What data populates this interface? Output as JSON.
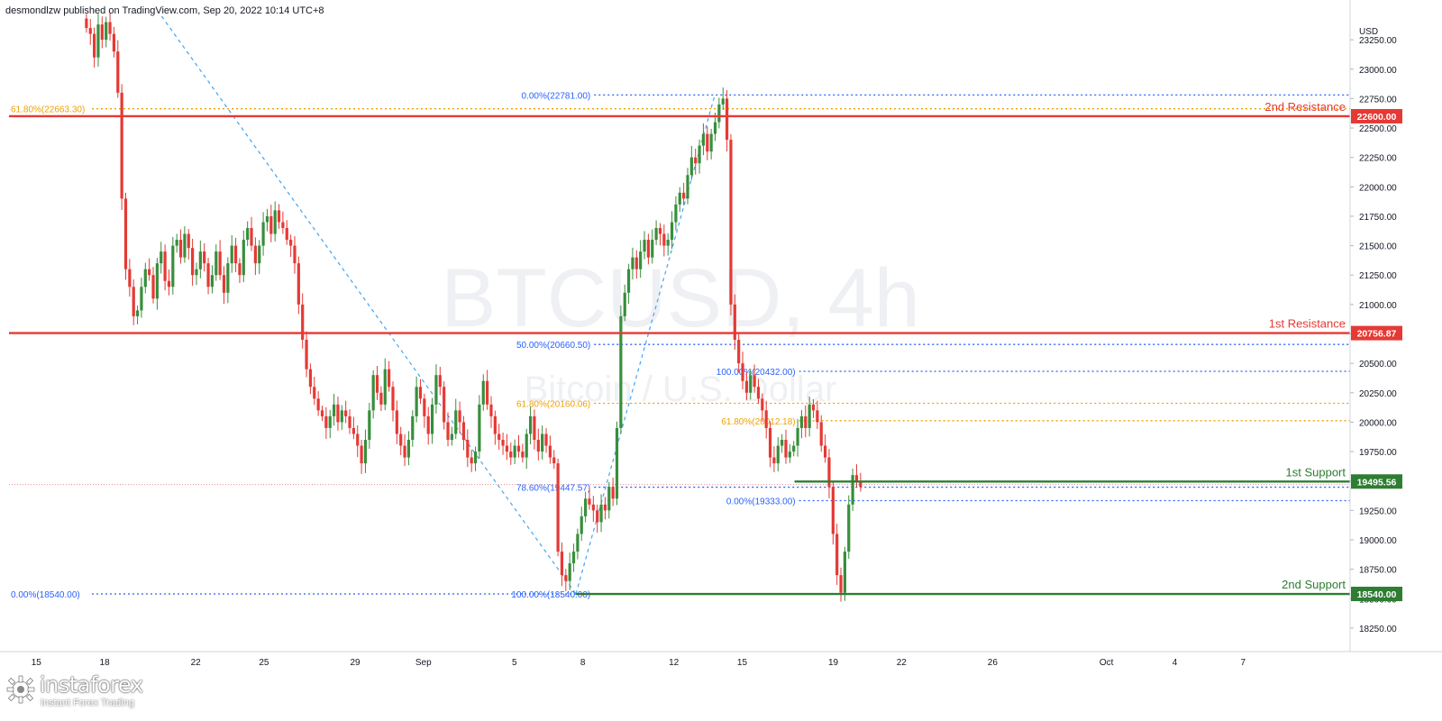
{
  "publisher": "desmondlzw published on TradingView.com, Sep 20, 2022 10:14 UTC+8",
  "watermark": {
    "symbol": "BTCUSD, 4h",
    "name": "Bitcoin / U.S. Dollar"
  },
  "brand": {
    "name": "instaforex",
    "tagline": "Instant Forex Trading",
    "logo_icon": "gear-icon"
  },
  "colors": {
    "up": "#388e3c",
    "down": "#e53935",
    "resistance": "#e53935",
    "support": "#2e7d32",
    "fib_blue": "#2962ff",
    "fib_orange": "#f0a000",
    "price_line": "#e57373"
  },
  "chart_data": {
    "type": "candlestick",
    "symbol": "BTCUSD",
    "timeframe": "4h",
    "currency": "USD",
    "ylim": [
      18050,
      23450
    ],
    "y_ticks": [
      18250,
      18500,
      18750,
      19000,
      19250,
      19500,
      19750,
      20000,
      20250,
      20500,
      20750,
      21000,
      21250,
      21500,
      21750,
      22000,
      22250,
      22500,
      22750,
      23000,
      23250
    ],
    "x_ticks": [
      "15",
      "18",
      "22",
      "25",
      "29",
      "Sep",
      "5",
      "8",
      "12",
      "15",
      "19",
      "22",
      "26",
      "Oct",
      "4",
      "7"
    ],
    "x_tick_day_index": [
      0,
      3,
      7,
      10,
      14,
      17,
      21,
      24,
      28,
      31,
      35,
      38,
      42,
      47,
      50,
      53
    ],
    "x_range_days": [
      -1.2,
      57.7
    ],
    "levels": [
      {
        "label": "2nd Resistance",
        "value": 22600.0,
        "value_label": "22600.00",
        "kind": "resistance"
      },
      {
        "label": "1st Resistance",
        "value": 20756.87,
        "value_label": "20756.87",
        "kind": "resistance"
      },
      {
        "label": "1st Support",
        "value": 19495.56,
        "value_label": "19495.56",
        "kind": "support"
      },
      {
        "label": "2nd Support",
        "value": 18540.0,
        "value_label": "18540.00",
        "kind": "support"
      }
    ],
    "fib_levels": [
      {
        "label": "61.80%(22663.30)",
        "value": 22663.3,
        "color": "orange",
        "start_day": -1.2,
        "label_pos": "left"
      },
      {
        "label": "0.00%(22781.00)",
        "value": 22781.0,
        "color": "blue",
        "start_day": 24.5,
        "label_pos": "left"
      },
      {
        "label": "50.00%(20660.50)",
        "value": 20660.5,
        "color": "blue",
        "start_day": 24.5,
        "label_pos": "left"
      },
      {
        "label": "100.00%(20432.00)",
        "value": 20432.0,
        "color": "blue",
        "start_day": 33.5,
        "label_pos": "left"
      },
      {
        "label": "61.80%(20160.06)",
        "value": 20160.06,
        "color": "orange",
        "start_day": 24.5,
        "label_pos": "left"
      },
      {
        "label": "61.80%(20012.18)",
        "value": 20012.18,
        "color": "orange",
        "start_day": 33.5,
        "label_pos": "left"
      },
      {
        "label": "78.60%(19447.57)",
        "value": 19447.57,
        "color": "blue",
        "start_day": 24.5,
        "label_pos": "left"
      },
      {
        "label": "0.00%(19333.00)",
        "value": 19333.0,
        "color": "blue",
        "start_day": 33.5,
        "label_pos": "left"
      },
      {
        "label": "0.00%(18540.00)",
        "value": 18540.0,
        "color": "blue",
        "start_day": -1.2,
        "label_pos": "left"
      },
      {
        "label": "100.00%(18540.00)",
        "value": 18540.0,
        "color": "blue",
        "start_day": 24.5,
        "label_pos": "left"
      }
    ],
    "price_series": [
      23350,
      23300,
      23100,
      23380,
      23250,
      23400,
      23300,
      23150,
      22800,
      21900,
      21300,
      21150,
      20900,
      20950,
      21150,
      21300,
      21250,
      21050,
      21350,
      21450,
      21200,
      21150,
      21500,
      21550,
      21400,
      21600,
      21480,
      21250,
      21300,
      21450,
      21350,
      21150,
      21250,
      21450,
      21250,
      21100,
      21350,
      21500,
      21350,
      21250,
      21550,
      21650,
      21500,
      21350,
      21500,
      21700,
      21750,
      21600,
      21800,
      21700,
      21650,
      21550,
      21500,
      21350,
      21000,
      20700,
      20450,
      20300,
      20200,
      20100,
      20050,
      19950,
      20050,
      20150,
      20000,
      20100,
      20050,
      19950,
      19900,
      19800,
      19650,
      19850,
      20100,
      20400,
      20250,
      20150,
      20450,
      20300,
      20100,
      19900,
      19800,
      19700,
      19850,
      20050,
      20300,
      20200,
      20050,
      19900,
      20150,
      20400,
      20300,
      20000,
      19850,
      19900,
      20100,
      20000,
      19850,
      19700,
      19650,
      19750,
      20150,
      20350,
      20150,
      20050,
      19900,
      19850,
      19800,
      19750,
      19700,
      19800,
      19750,
      19700,
      19900,
      20050,
      19850,
      19750,
      19900,
      19800,
      19700,
      19650,
      18900,
      18700,
      18650,
      18800,
      18900,
      19050,
      19200,
      19350,
      19300,
      19250,
      19150,
      19300,
      19250,
      19450,
      19350,
      19950,
      20900,
      21100,
      21300,
      21400,
      21300,
      21450,
      21550,
      21400,
      21550,
      21650,
      21600,
      21500,
      21550,
      21700,
      21850,
      21950,
      21900,
      22100,
      22250,
      22200,
      22350,
      22450,
      22300,
      22450,
      22550,
      22700,
      22750,
      22400,
      21000,
      20700,
      20500,
      20350,
      20250,
      20400,
      20300,
      20200,
      20100,
      19950,
      19700,
      19650,
      19800,
      19850,
      19700,
      19750,
      19800,
      19950,
      20050,
      19950,
      20150,
      20100,
      20000,
      19800,
      19700,
      19450,
      19050,
      18700,
      18550,
      18900,
      19300,
      19550,
      19500,
      19450
    ],
    "trendlines": [
      {
        "from": {
          "day": 5.5,
          "value": 23450
        },
        "to": {
          "day": 23.7,
          "value": 18540
        },
        "style": "dashed"
      },
      {
        "from": {
          "day": 23.7,
          "value": 18540
        },
        "to": {
          "day": 29.8,
          "value": 22781
        },
        "style": "dashed"
      }
    ],
    "last_price_line": 19470,
    "grid": false,
    "legend": "none"
  }
}
